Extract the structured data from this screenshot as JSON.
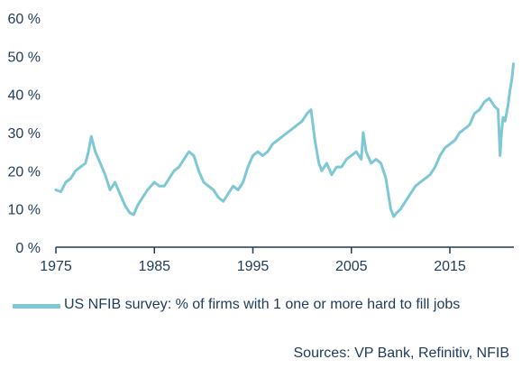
{
  "colors": {
    "series": "#7ec8d5",
    "axis": "#1f3a5a",
    "text": "#1f3a5a"
  },
  "chart_data": {
    "type": "line",
    "title": "",
    "xlabel": "",
    "ylabel": "",
    "xlim": [
      1975,
      2021.5
    ],
    "ylim": [
      0,
      60
    ],
    "y_ticks": [
      0,
      10,
      20,
      30,
      40,
      50,
      60
    ],
    "y_tick_labels": [
      "0 %",
      "10 %",
      "20 %",
      "30 %",
      "40 %",
      "50 %",
      "60 %"
    ],
    "x_ticks": [
      1975,
      1985,
      1995,
      2005,
      2015
    ],
    "x_tick_labels": [
      "1975",
      "1985",
      "1995",
      "2005",
      "2015"
    ],
    "grid": false,
    "legend_position": "bottom-left",
    "series": [
      {
        "name": "US NFIB survey: % of firms with 1 one or more hard to fill jobs",
        "x": [
          1975,
          1975.5,
          1976,
          1976.5,
          1977,
          1977.5,
          1978,
          1978.3,
          1978.6,
          1979,
          1979.5,
          1980,
          1980.5,
          1981,
          1981.5,
          1982,
          1982.5,
          1982.9,
          1983.3,
          1983.8,
          1984.3,
          1985,
          1985.5,
          1986,
          1986.5,
          1987,
          1987.5,
          1988,
          1988.5,
          1989,
          1989.5,
          1990,
          1990.5,
          1991,
          1991.5,
          1992,
          1992.5,
          1993,
          1993.5,
          1994,
          1994.5,
          1995,
          1995.5,
          1996,
          1996.5,
          1997,
          1997.5,
          1998,
          1998.5,
          1999,
          1999.5,
          2000,
          2000.5,
          2000.9,
          2001.3,
          2001.7,
          2002,
          2002.5,
          2003,
          2003.5,
          2004,
          2004.5,
          2005,
          2005.5,
          2006,
          2006.2,
          2006.5,
          2007,
          2007.5,
          2008,
          2008.5,
          2009,
          2009.3,
          2009.6,
          2010,
          2010.5,
          2011,
          2011.5,
          2012,
          2012.5,
          2013,
          2013.5,
          2014,
          2014.5,
          2015,
          2015.5,
          2016,
          2016.5,
          2017,
          2017.5,
          2018,
          2018.5,
          2019,
          2019.5,
          2019.9,
          2020.1,
          2020.25,
          2020.4,
          2020.6,
          2020.9,
          2021.1,
          2021.3,
          2021.45
        ],
        "y": [
          15,
          14.5,
          17,
          18,
          20,
          21,
          22,
          25,
          29,
          25,
          22,
          19,
          15,
          17,
          14,
          11,
          9,
          8.5,
          11,
          13,
          15,
          17,
          16,
          16,
          18,
          20,
          21,
          23,
          25,
          24,
          20,
          17,
          16,
          15,
          13,
          12,
          14,
          16,
          15,
          17,
          21,
          24,
          25,
          24,
          25,
          27,
          28,
          29,
          30,
          31,
          32,
          33,
          35,
          36,
          28,
          22,
          20,
          22,
          19,
          21,
          21,
          23,
          24,
          25,
          23,
          30,
          25,
          22,
          23,
          22,
          18,
          10,
          8,
          9,
          10,
          12,
          14,
          16,
          17,
          18,
          19,
          21,
          24,
          26,
          27,
          28,
          30,
          31,
          32,
          35,
          36,
          38,
          39,
          37,
          36,
          24,
          30,
          34,
          33,
          37,
          41,
          44,
          48
        ]
      }
    ],
    "source": "Sources: VP Bank, Refinitiv, NFIB"
  }
}
